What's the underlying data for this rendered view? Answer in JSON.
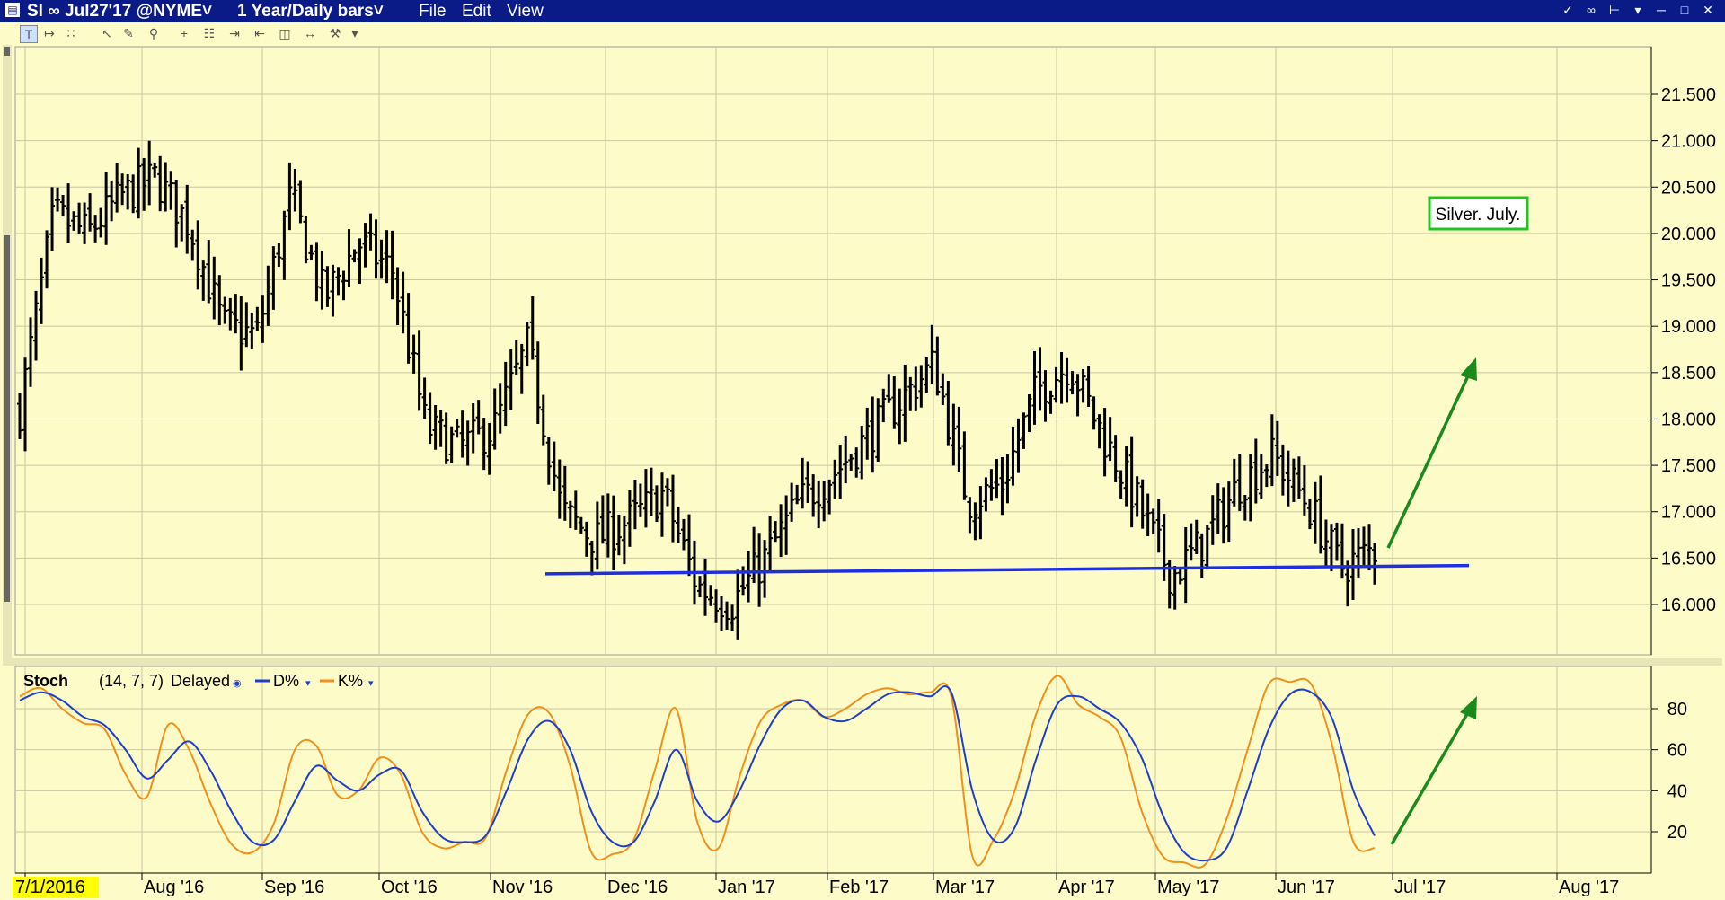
{
  "titlebar": {
    "symbol": "SI ∞ Jul27'17 @NYME˅",
    "timeframe": "1 Year/Daily bars˅",
    "menu": [
      "File",
      "Edit",
      "View"
    ]
  },
  "toolbar": {
    "icons": [
      "text-tool-icon",
      "line-tool-icon",
      "bar-tool-icon",
      "cursor-icon",
      "pointer-icon",
      "zoom-icon",
      "crosshair-icon",
      "chart-type-icon",
      "arrow-right-icon",
      "arrow-left-icon",
      "split-icon",
      "arrows-icon",
      "wrench-icon",
      "more-icon"
    ]
  },
  "colors": {
    "background": "#fdfbc7",
    "titlebar": "#0a1a86",
    "price_bars": "#000000",
    "support_line": "#1f2fe0",
    "d_line": "#1f3fc8",
    "k_line": "#f0901c",
    "arrows": "#1a8a1a",
    "annotation_border": "#22c422",
    "first_date_highlight": "#ffff00"
  },
  "chart_data": [
    {
      "type": "ohlc",
      "symbol": "SI",
      "y_ticks": [
        "21.500",
        "21.000",
        "20.500",
        "20.000",
        "19.500",
        "19.000",
        "18.500",
        "18.000",
        "17.500",
        "17.000",
        "16.500",
        "16.000"
      ],
      "ylim": [
        15.5,
        22.0
      ],
      "x_ticks": [
        "7/1/2016",
        "Aug '16",
        "Sep '16",
        "Oct '16",
        "Nov '16",
        "Dec '16",
        "Jan '17",
        "Feb '17",
        "Mar '17",
        "Apr '17",
        "May '17",
        "Jun '17",
        "Jul '17",
        "Aug '17"
      ],
      "annotation": "Silver. July.",
      "support_line": {
        "start": {
          "date": "Dec '16",
          "value": 16.33
        },
        "end": {
          "date": "Jul '17",
          "value": 16.42
        }
      },
      "anchors": [
        [
          "7/1/2016",
          18.1
        ],
        [
          "7/1/2016",
          20.2
        ],
        [
          "Aug '16",
          20.0
        ],
        [
          "Aug '16",
          20.4
        ],
        [
          "Aug '16",
          20.6
        ],
        [
          "Aug '16",
          20.1
        ],
        [
          "Sep '16",
          19.0
        ],
        [
          "Sep '16",
          18.9
        ],
        [
          "Sep '16",
          20.4
        ],
        [
          "Sep '16",
          19.3
        ],
        [
          "Oct '16",
          19.9
        ],
        [
          "Oct '16",
          19.6
        ],
        [
          "Oct '16",
          17.9
        ],
        [
          "Oct '16",
          17.7
        ],
        [
          "Nov '16",
          17.9
        ],
        [
          "Nov '16",
          18.8
        ],
        [
          "Nov '16",
          17.0
        ],
        [
          "Nov '16",
          16.7
        ],
        [
          "Dec '16",
          16.9
        ],
        [
          "Dec '16",
          17.2
        ],
        [
          "Dec '16",
          16.2
        ],
        [
          "Dec '16",
          16.0
        ],
        [
          "Jan '17",
          16.5
        ],
        [
          "Jan '17",
          17.1
        ],
        [
          "Feb '17",
          17.4
        ],
        [
          "Feb '17",
          17.8
        ],
        [
          "Feb '17",
          18.2
        ],
        [
          "Mar '17",
          18.6
        ],
        [
          "Mar '17",
          17.1
        ],
        [
          "Mar '17",
          17.3
        ],
        [
          "Apr '17",
          18.3
        ],
        [
          "Apr '17",
          18.6
        ],
        [
          "Apr '17",
          17.8
        ],
        [
          "May '17",
          17.1
        ],
        [
          "May '17",
          16.3
        ],
        [
          "May '17",
          16.7
        ],
        [
          "Jun '17",
          17.3
        ],
        [
          "Jun '17",
          17.6
        ],
        [
          "Jun '17",
          17.1
        ],
        [
          "Jun '17",
          16.4
        ],
        [
          "Jun '17",
          16.6
        ]
      ]
    },
    {
      "type": "line",
      "title": "Stoch",
      "params": "(14, 7, 7)",
      "status": "Delayed",
      "legend": [
        "D%",
        "K%"
      ],
      "y_ticks": [
        "80",
        "60",
        "40",
        "20"
      ],
      "ylim": [
        0,
        100
      ],
      "series": [
        {
          "name": "D%",
          "values": [
            84,
            88,
            84,
            76,
            72,
            60,
            46,
            55,
            64,
            50,
            30,
            15,
            16,
            35,
            52,
            45,
            40,
            48,
            50,
            30,
            17,
            15,
            18,
            40,
            65,
            74,
            60,
            30,
            15,
            15,
            35,
            60,
            35,
            25,
            40,
            63,
            80,
            84,
            76,
            74,
            80,
            87,
            88,
            86,
            88,
            40,
            16,
            22,
            55,
            82,
            86,
            80,
            73,
            56,
            28,
            10,
            6,
            12,
            40,
            70,
            87,
            88,
            75,
            40,
            18
          ]
        },
        {
          "name": "K%",
          "values": [
            86,
            90,
            80,
            73,
            70,
            48,
            37,
            72,
            60,
            34,
            14,
            10,
            24,
            60,
            62,
            38,
            40,
            56,
            48,
            20,
            12,
            15,
            17,
            50,
            77,
            78,
            52,
            10,
            9,
            16,
            50,
            80,
            25,
            12,
            47,
            74,
            82,
            84,
            76,
            80,
            87,
            90,
            87,
            88,
            86,
            8,
            16,
            40,
            77,
            96,
            82,
            76,
            66,
            30,
            8,
            5,
            4,
            26,
            60,
            92,
            93,
            92,
            62,
            15,
            12
          ]
        }
      ]
    }
  ]
}
